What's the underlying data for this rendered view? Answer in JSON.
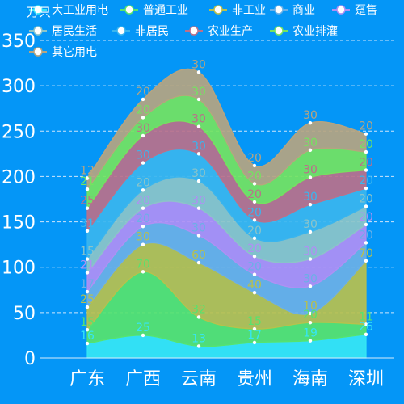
{
  "chart_data": {
    "type": "area",
    "stacked": true,
    "smooth": true,
    "y_unit": "万只",
    "categories": [
      "广东",
      "广西",
      "云南",
      "贵州",
      "海南",
      "深圳"
    ],
    "ylim": [
      0,
      350
    ],
    "yticks": [
      0,
      50,
      100,
      150,
      200,
      250,
      300,
      350
    ],
    "grid": "horizontal-dashed",
    "legend_position": "top",
    "series": [
      {
        "name": "大工业用电",
        "values": [
          16,
          25,
          13,
          17,
          19,
          26
        ],
        "color": "#36e6f4"
      },
      {
        "name": "普通工业",
        "values": [
          15,
          70,
          32,
          15,
          20,
          11
        ],
        "color": "#57e36d"
      },
      {
        "name": "非工业",
        "values": [
          25,
          30,
          60,
          40,
          10,
          70
        ],
        "color": "#b8c04d"
      },
      {
        "name": "商业",
        "values": [
          17,
          20,
          30,
          20,
          30,
          20
        ],
        "color": "#6bb0e6"
      },
      {
        "name": "趸售",
        "values": [
          21,
          20,
          30,
          20,
          30,
          20
        ],
        "color": "#b08ff4"
      },
      {
        "name": "居民生活",
        "values": [
          15,
          20,
          30,
          20,
          30,
          20
        ],
        "color": "#8cc4c8"
      },
      {
        "name": "非居民",
        "values": [
          31,
          30,
          30,
          20,
          30,
          20
        ],
        "color": "#3ab5ee"
      },
      {
        "name": "农业生产",
        "values": [
          25,
          30,
          30,
          20,
          30,
          20
        ],
        "color": "#bb708a"
      },
      {
        "name": "农业排灌",
        "values": [
          21,
          20,
          30,
          20,
          30,
          20
        ],
        "color": "#74e360"
      },
      {
        "name": "其它用电",
        "values": [
          12,
          20,
          30,
          20,
          30,
          20
        ],
        "color": "#b6a480"
      }
    ]
  }
}
